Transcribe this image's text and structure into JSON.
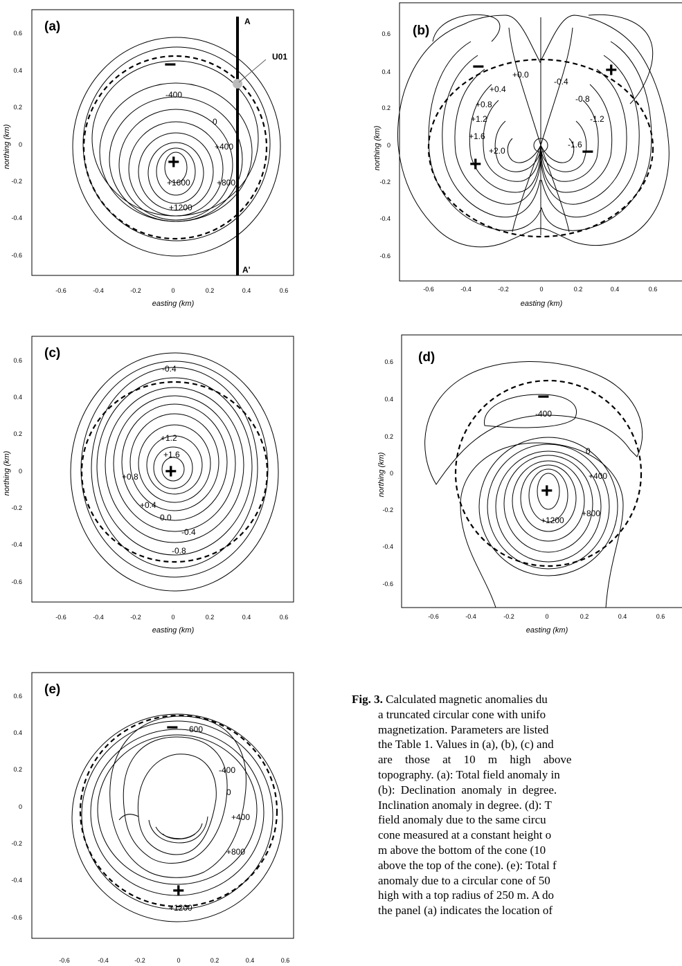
{
  "panels": {
    "a": {
      "label": "(a)",
      "xlabel": "easting (km)",
      "ylabel": "northing (km)",
      "xticks": [
        "-0.6",
        "-0.4",
        "-0.2",
        "0",
        "0.2",
        "0.4",
        "0.6"
      ],
      "yticks": [
        "0.6",
        "0.4",
        "0.2",
        "0",
        "-0.2",
        "-0.4",
        "-0.6"
      ],
      "profile_top": "A",
      "profile_bottom": "A'",
      "station": "U01",
      "contour_labels": [
        "-400",
        "0",
        "+400",
        "+800",
        "+1200",
        "+1600"
      ],
      "minus": "−",
      "plus": "+"
    },
    "b": {
      "label": "(b)",
      "xlabel": "easting (km)",
      "ylabel": "northing (km)",
      "xticks": [
        "-0.6",
        "-0.4",
        "-0.2",
        "0",
        "0.2",
        "0.4",
        "0.6"
      ],
      "yticks": [
        "0.6",
        "0.4",
        "0.2",
        "0",
        "-0.2",
        "-0.4",
        "-0.6"
      ],
      "contour_labels": [
        "+0.0",
        "-0.4",
        "+0.4",
        "-0.8",
        "+0.8",
        "-1.2",
        "+1.2",
        "+1.6",
        "-1.6",
        "+2.0"
      ],
      "minus": "−",
      "plus": "+"
    },
    "c": {
      "label": "(c)",
      "xlabel": "easting (km)",
      "ylabel": "northing (km)",
      "xticks": [
        "-0.6",
        "-0.4",
        "-0.2",
        "0",
        "0.2",
        "0.4",
        "0.6"
      ],
      "yticks": [
        "0.6",
        "0.4",
        "0.2",
        "0",
        "-0.2",
        "-0.4",
        "-0.6"
      ],
      "contour_labels": [
        "-0.4",
        "+1.2",
        "+1.6",
        "+0.8",
        "+0.4",
        "0.0",
        "-0.4",
        "-0.8"
      ],
      "minus": "−",
      "plus": "+"
    },
    "d": {
      "label": "(d)",
      "xlabel": "easting (km)",
      "ylabel": "northing (km)",
      "xticks": [
        "-0.6",
        "-0.4",
        "-0.2",
        "0",
        "0.2",
        "0.4",
        "0.6"
      ],
      "yticks": [
        "0.6",
        "0.4",
        "0.2",
        "0",
        "-0.2",
        "-0.4",
        "-0.6"
      ],
      "contour_labels": [
        "-400",
        "0",
        "+400",
        "+800",
        "+1200"
      ],
      "minus": "−",
      "plus": "+"
    },
    "e": {
      "label": "(e)",
      "xticks": [
        "-0.6",
        "-0.4",
        "-0.2",
        "0",
        "0.2",
        "0.4",
        "0.6"
      ],
      "yticks": [
        "0.6",
        "0.4",
        "0.2",
        "0",
        "-0.2",
        "-0.4",
        "-0.6"
      ],
      "contour_labels": [
        "-600",
        "-400",
        "0",
        "+400",
        "+800",
        "+1200"
      ],
      "minus": "−",
      "plus": "+"
    }
  },
  "caption": {
    "fig_label": "Fig. 3.",
    "lines": [
      "Calculated magnetic anomalies du",
      "a truncated circular cone with unifo",
      "magnetization. Parameters are listed",
      "the Table 1. Values in (a), (b), (c) and",
      "are those at 10 m high above",
      "topography. (a): Total field anomaly in",
      "(b): Declination anomaly in degree.",
      "Inclination anomaly in degree. (d): T",
      "field anomaly due to the same circu",
      "cone measured at a constant height o",
      "m above the bottom of the cone (10",
      "above the top of the cone). (e): Total f",
      "anomaly due to a circular cone of 50",
      "high with a top radius of 250 m. A do",
      "the panel (a) indicates the location of"
    ]
  }
}
